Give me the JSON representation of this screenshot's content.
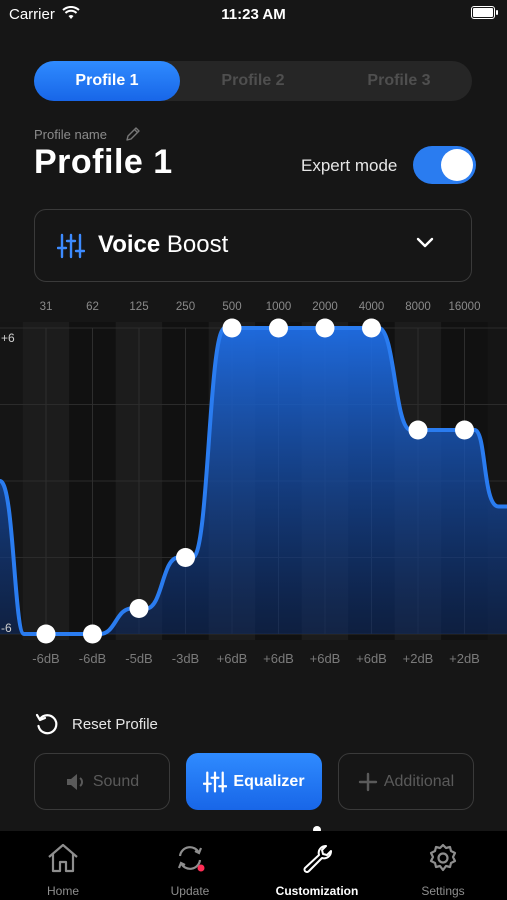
{
  "status_bar": {
    "carrier": "Carrier",
    "time": "11:23 AM"
  },
  "profile_tabs": [
    {
      "label": "Profile 1",
      "active": true
    },
    {
      "label": "Profile 2",
      "active": false
    },
    {
      "label": "Profile 3",
      "active": false
    }
  ],
  "profile": {
    "name_label": "Profile name",
    "title": "Profile 1"
  },
  "expert_mode": {
    "label": "Expert mode",
    "enabled": true
  },
  "preset": {
    "word1": "Voice",
    "word2": "Boost"
  },
  "equalizer": {
    "frequencies": [
      "31",
      "62",
      "125",
      "250",
      "500",
      "1000",
      "2000",
      "4000",
      "8000",
      "16000"
    ],
    "gains": [
      -6,
      -6,
      -5,
      -3,
      6,
      6,
      6,
      6,
      2,
      2
    ],
    "gain_labels": [
      "-6dB",
      "-6dB",
      "-5dB",
      "-3dB",
      "+6dB",
      "+6dB",
      "+6dB",
      "+6dB",
      "+2dB",
      "+2dB"
    ],
    "y_max_label": "+6",
    "y_min_label": "-6",
    "range_db": [
      -6,
      6
    ],
    "accent": "#2a7cf0"
  },
  "reset_label": "Reset Profile",
  "bottom_buttons": {
    "sound": "Sound",
    "equalizer": "Equalizer",
    "additional": "Additional"
  },
  "tab_bar": [
    {
      "label": "Home",
      "icon": "home-icon"
    },
    {
      "label": "Update",
      "icon": "update-icon"
    },
    {
      "label": "Customization",
      "icon": "wrench-icon",
      "active": true
    },
    {
      "label": "Settings",
      "icon": "gear-icon"
    }
  ]
}
